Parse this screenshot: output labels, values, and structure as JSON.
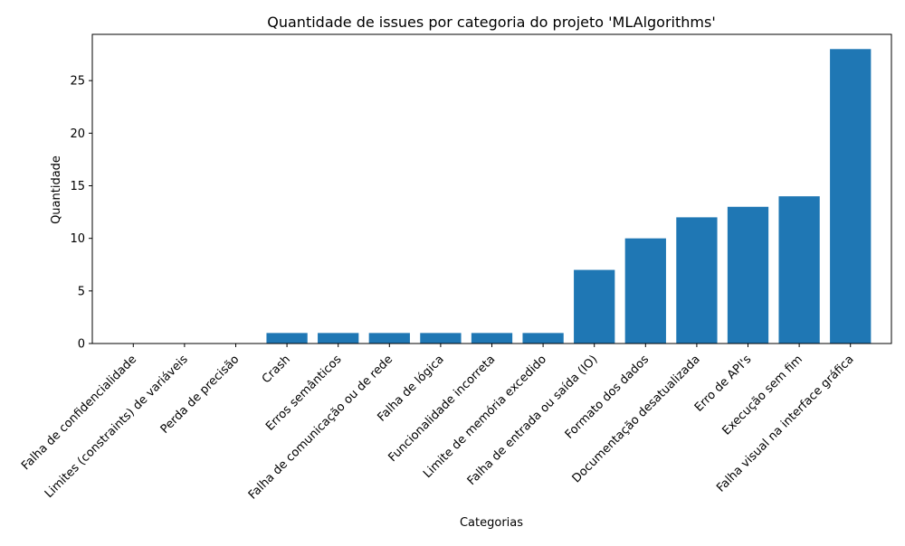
{
  "chart_data": {
    "type": "bar",
    "title": "Quantidade de issues por categoria do projeto 'MLAlgorithms'",
    "xlabel": "Categorias",
    "ylabel": "Quantidade",
    "ylim": [
      0,
      29.4
    ],
    "yticks": [
      0,
      5,
      10,
      15,
      20,
      25
    ],
    "grid": false,
    "legend": "none",
    "bar_color": "#1f77b4",
    "categories": [
      "Falha de confidencialidade",
      "Limites (constraints) de variáveis",
      "Perda de precisão",
      "Crash",
      "Erros semânticos",
      "Falha de comunicação ou de rede",
      "Falha de lógica",
      "Funcionalidade incorreta",
      "Limite de memória excedido",
      "Falha de entrada ou saída (IO)",
      "Formato dos dados",
      "Documentação desatualizada",
      "Erro de API's",
      "Execução sem fim",
      "Falha visual na interface gráfica"
    ],
    "values": [
      0,
      0,
      0,
      1,
      1,
      1,
      1,
      1,
      1,
      7,
      10,
      12,
      13,
      14,
      28
    ]
  }
}
